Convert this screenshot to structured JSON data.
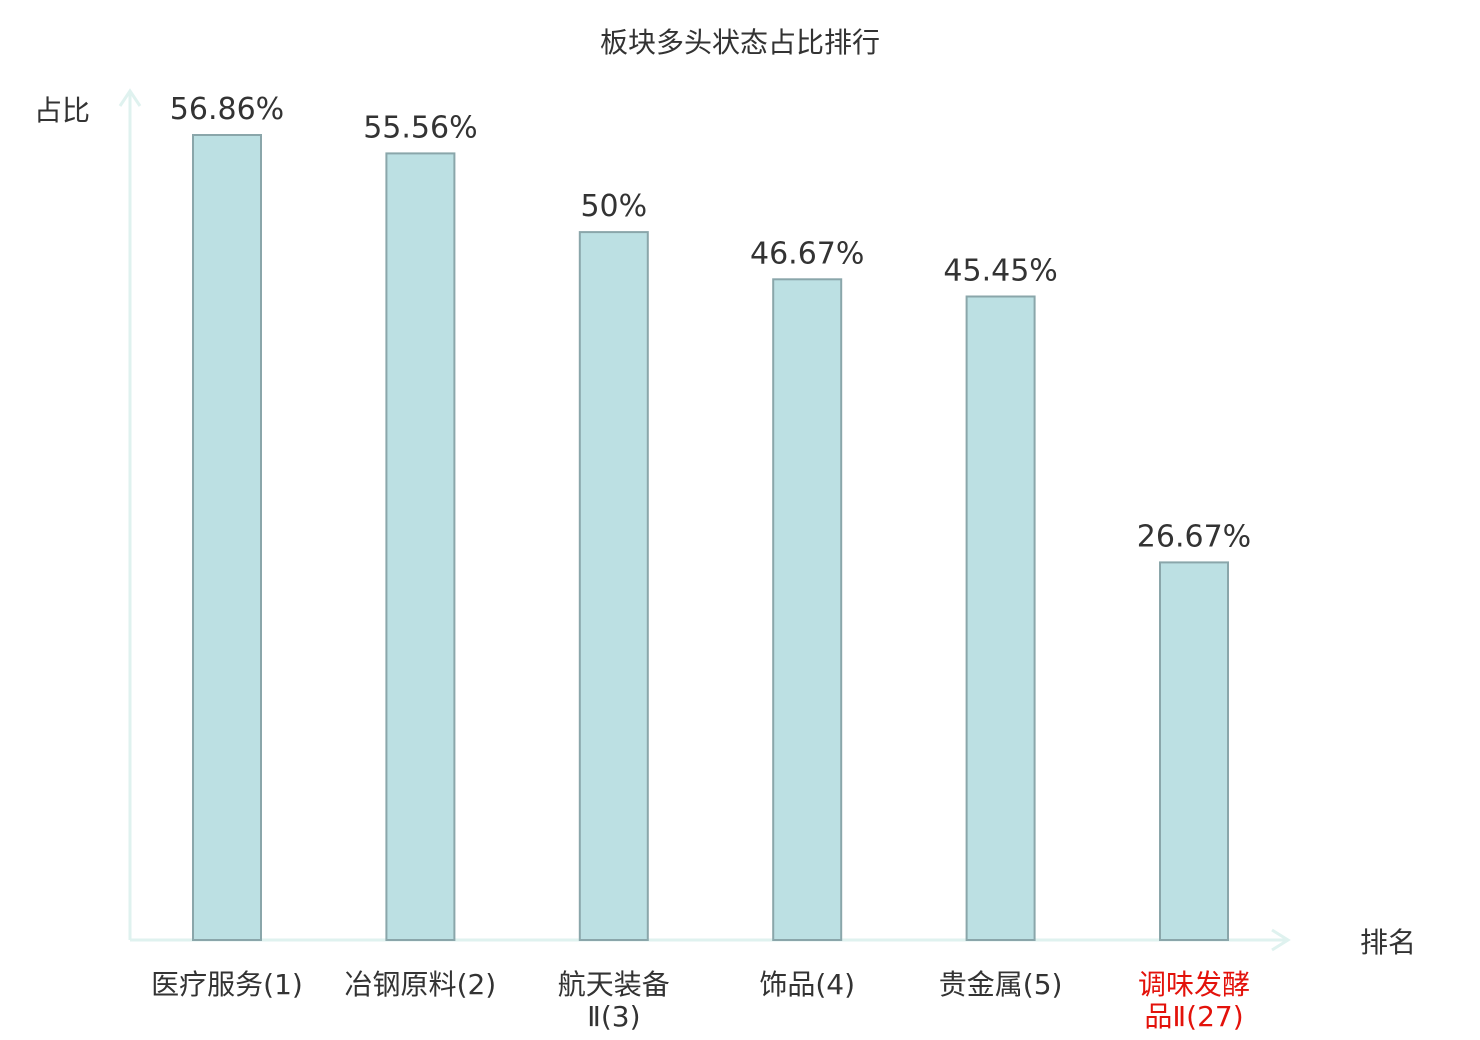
{
  "chart_data": {
    "type": "bar",
    "title": "板块多头状态占比排行",
    "ylabel": "占比",
    "xlabel": "排名",
    "ylim": [
      0,
      60
    ],
    "categories": [
      {
        "lines": [
          "医疗服务",
          "(1)"
        ],
        "highlight": false
      },
      {
        "lines": [
          "冶钢原料",
          "(2)"
        ],
        "highlight": false
      },
      {
        "lines": [
          "航天装备",
          "Ⅱ(3)"
        ],
        "highlight": false
      },
      {
        "lines": [
          "饰品",
          "(4)"
        ],
        "highlight": false
      },
      {
        "lines": [
          "贵金属",
          "(5)"
        ],
        "highlight": false
      },
      {
        "lines": [
          "调味发酵",
          "品Ⅱ(27)"
        ],
        "highlight": true
      }
    ],
    "values": [
      56.86,
      55.56,
      50,
      46.67,
      45.45,
      26.67
    ],
    "value_labels": [
      "56.86%",
      "55.56%",
      "50%",
      "46.67%",
      "45.45%",
      "26.67%"
    ],
    "grid": false,
    "colors": {
      "bar_fill": "#bce0e3",
      "bar_stroke": "#8aa6aa",
      "axis": "#dff2ef",
      "text": "#333333",
      "highlight": "#e3120b"
    }
  }
}
